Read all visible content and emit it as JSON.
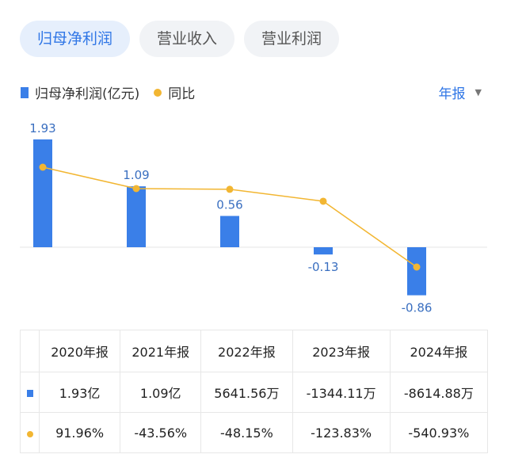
{
  "tabs": [
    {
      "label": "归母净利润",
      "active": true
    },
    {
      "label": "营业收入",
      "active": false
    },
    {
      "label": "营业利润",
      "active": false
    }
  ],
  "legend": {
    "bar_label": "归母净利润(亿元)",
    "line_label": "同比"
  },
  "period": {
    "label": "年报",
    "caret": "▼"
  },
  "colors": {
    "bar": "#3a7fe8",
    "line": "#f2b632",
    "active": "#2f76e6",
    "positive": "#e0453a",
    "negative": "#2a9d55"
  },
  "chart_data": {
    "type": "bar",
    "categories": [
      "2020年报",
      "2021年报",
      "2022年报",
      "2023年报",
      "2024年报"
    ],
    "series": [
      {
        "name": "归母净利润(亿元)",
        "type": "bar",
        "values": [
          1.93,
          1.09,
          0.56,
          -0.13,
          -0.86
        ],
        "labels": [
          "1.93",
          "1.09",
          "0.56",
          "-0.13",
          "-0.86"
        ]
      },
      {
        "name": "同比",
        "type": "line",
        "values": [
          91.96,
          -43.56,
          -48.15,
          -123.83,
          -540.93
        ]
      }
    ]
  },
  "table": {
    "headers": [
      "2020年报",
      "2021年报",
      "2022年报",
      "2023年报",
      "2024年报"
    ],
    "profit": [
      "1.93亿",
      "1.09亿",
      "5641.56万",
      "-1344.11万",
      "-8614.88万"
    ],
    "yoy": [
      "91.96%",
      "-43.56%",
      "-48.15%",
      "-123.83%",
      "-540.93%"
    ]
  }
}
